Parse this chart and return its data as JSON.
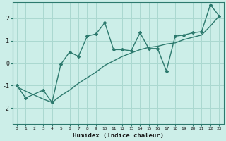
{
  "xlabel": "Humidex (Indice chaleur)",
  "ylabel": "",
  "bg_color": "#cceee8",
  "line_color": "#2d7a6e",
  "grid_color": "#aad8d0",
  "xlim": [
    -0.5,
    23.5
  ],
  "ylim": [
    -2.7,
    2.7
  ],
  "xticks": [
    0,
    1,
    2,
    3,
    4,
    5,
    6,
    7,
    8,
    9,
    10,
    11,
    12,
    13,
    14,
    15,
    16,
    17,
    18,
    19,
    20,
    21,
    22,
    23
  ],
  "yticks": [
    -2,
    -1,
    0,
    1,
    2
  ],
  "zigzag_x": [
    0,
    1,
    3,
    4,
    4,
    5,
    6,
    7,
    8,
    9,
    10,
    11,
    12,
    13,
    14,
    15,
    16,
    17,
    18,
    19,
    20,
    21,
    22,
    23
  ],
  "zigzag_y": [
    -1.0,
    -1.55,
    -1.2,
    -1.75,
    -1.75,
    -0.05,
    0.5,
    0.3,
    1.2,
    1.3,
    1.8,
    0.6,
    0.6,
    0.55,
    1.35,
    0.65,
    0.65,
    -0.35,
    1.2,
    1.25,
    1.35,
    1.4,
    2.6,
    2.1
  ],
  "trend_x": [
    0,
    1,
    3,
    4,
    5,
    6,
    7,
    8,
    9,
    10,
    11,
    12,
    13,
    14,
    15,
    16,
    17,
    18,
    19,
    20,
    21,
    22,
    23
  ],
  "trend_y": [
    -1.05,
    -1.25,
    -1.6,
    -1.75,
    -1.45,
    -1.2,
    -0.9,
    -0.65,
    -0.4,
    -0.1,
    0.1,
    0.3,
    0.45,
    0.6,
    0.7,
    0.75,
    0.85,
    0.9,
    1.05,
    1.15,
    1.25,
    1.65,
    2.1
  ]
}
